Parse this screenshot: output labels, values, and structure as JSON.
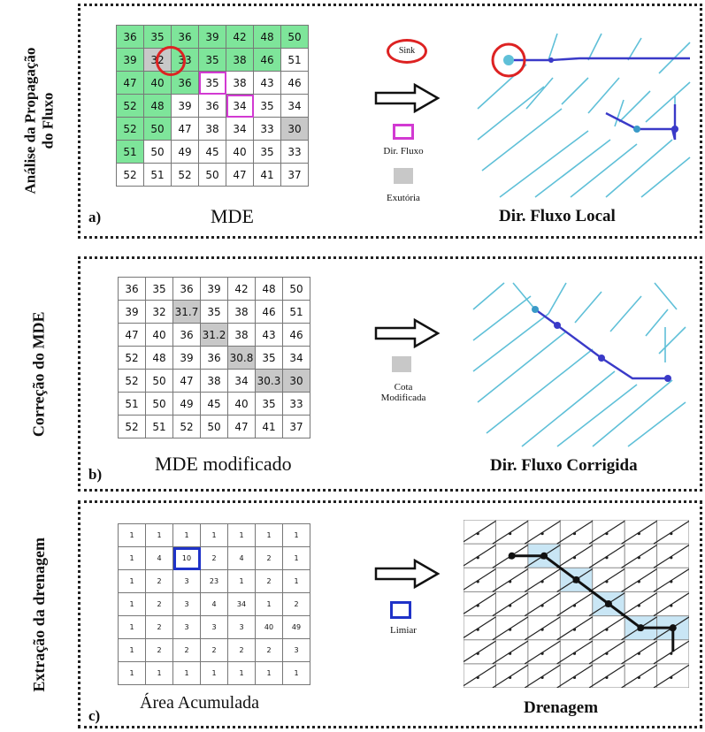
{
  "panels": {
    "a": {
      "letter": "a)",
      "side_label_line1": "Análise da Propagação",
      "side_label_line2": "do Fluxo",
      "grid_caption": "MDE",
      "result_caption": "Dir. Fluxo Local",
      "legend_sink": "Sink",
      "legend_dir": "Dir. Fluxo",
      "legend_outlet": "Exutória",
      "grid": [
        [
          "36",
          "35",
          "36",
          "39",
          "42",
          "48",
          "50"
        ],
        [
          "39",
          "32",
          "33",
          "35",
          "38",
          "46",
          "51"
        ],
        [
          "47",
          "40",
          "36",
          "35",
          "38",
          "43",
          "46"
        ],
        [
          "52",
          "48",
          "39",
          "36",
          "34",
          "35",
          "34"
        ],
        [
          "52",
          "50",
          "47",
          "38",
          "34",
          "33",
          "30"
        ],
        [
          "51",
          "50",
          "49",
          "45",
          "40",
          "35",
          "33"
        ],
        [
          "52",
          "51",
          "52",
          "50",
          "47",
          "41",
          "37"
        ]
      ]
    },
    "b": {
      "letter": "b)",
      "side_label": "Correção do MDE",
      "grid_caption": "MDE modificado",
      "result_caption": "Dir. Fluxo Corrigida",
      "legend_line1": "Cota",
      "legend_line2": "Modificada",
      "grid": [
        [
          "36",
          "35",
          "36",
          "39",
          "42",
          "48",
          "50"
        ],
        [
          "39",
          "32",
          "31.7",
          "35",
          "38",
          "46",
          "51"
        ],
        [
          "47",
          "40",
          "36",
          "31.2",
          "38",
          "43",
          "46"
        ],
        [
          "52",
          "48",
          "39",
          "36",
          "30.8",
          "35",
          "34"
        ],
        [
          "52",
          "50",
          "47",
          "38",
          "34",
          "30.3",
          "30"
        ],
        [
          "51",
          "50",
          "49",
          "45",
          "40",
          "35",
          "33"
        ],
        [
          "52",
          "51",
          "52",
          "50",
          "47",
          "41",
          "37"
        ]
      ]
    },
    "c": {
      "letter": "c)",
      "side_label": "Extração da drenagem",
      "grid_caption": "Área Acumulada",
      "result_caption": "Drenagem",
      "legend": "Limiar",
      "grid": [
        [
          "1",
          "1",
          "1",
          "1",
          "1",
          "1",
          "1"
        ],
        [
          "1",
          "4",
          "10",
          "2",
          "4",
          "2",
          "1"
        ],
        [
          "1",
          "2",
          "3",
          "23",
          "1",
          "2",
          "1"
        ],
        [
          "1",
          "2",
          "3",
          "4",
          "34",
          "1",
          "2"
        ],
        [
          "1",
          "2",
          "3",
          "3",
          "3",
          "40",
          "49"
        ],
        [
          "1",
          "2",
          "2",
          "2",
          "2",
          "2",
          "3"
        ],
        [
          "1",
          "1",
          "1",
          "1",
          "1",
          "1",
          "1"
        ]
      ]
    }
  },
  "colors": {
    "green": "#7ee59a",
    "gray": "#c8c8c8",
    "sink_red": "#dd2222",
    "flow_magenta": "#d23ad2",
    "threshold_blue": "#1f33c8",
    "stream_light": "#5fc0d8",
    "stream_dark": "#3a3ac8"
  }
}
